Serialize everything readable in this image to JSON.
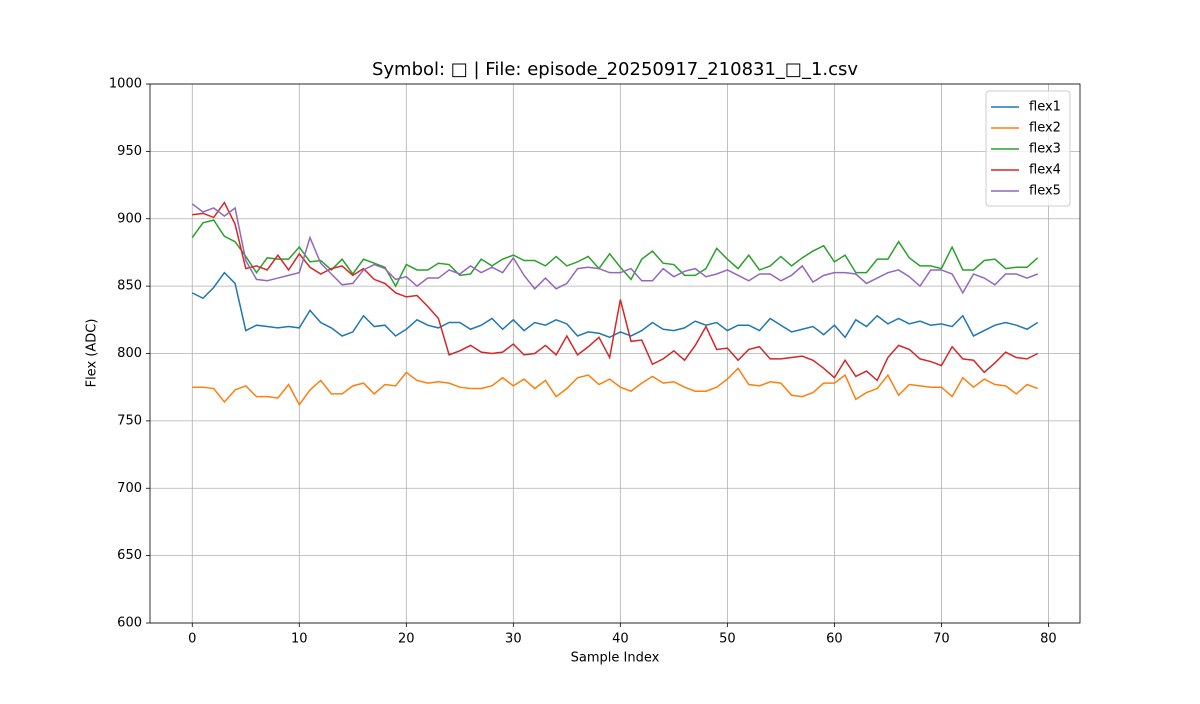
{
  "chart_data": {
    "type": "line",
    "title": "Symbol: □ | File: episode_20250917_210831_□_1.csv",
    "x_label": "Sample Index",
    "y_label": "Flex (ADC)",
    "x": [
      0,
      1,
      2,
      3,
      4,
      5,
      6,
      7,
      8,
      9,
      10,
      11,
      12,
      13,
      14,
      15,
      16,
      17,
      18,
      19,
      20,
      21,
      22,
      23,
      24,
      25,
      26,
      27,
      28,
      29,
      30,
      31,
      32,
      33,
      34,
      35,
      36,
      37,
      38,
      39,
      40,
      41,
      42,
      43,
      44,
      45,
      46,
      47,
      48,
      49,
      50,
      51,
      52,
      53,
      54,
      55,
      56,
      57,
      58,
      59,
      60,
      61,
      62,
      63,
      64,
      65,
      66,
      67,
      68,
      69,
      70,
      71,
      72,
      73,
      74,
      75,
      76,
      77,
      78,
      79
    ],
    "series": [
      {
        "name": "flex1",
        "color": "#1f77b4",
        "values": [
          845,
          841,
          849,
          860,
          852,
          817,
          821,
          820,
          819,
          820,
          819,
          832,
          823,
          819,
          813,
          816,
          828,
          820,
          821,
          813,
          818,
          825,
          821,
          819,
          823,
          823,
          818,
          821,
          826,
          818,
          825,
          817,
          823,
          821,
          825,
          822,
          813,
          816,
          815,
          812,
          816,
          813,
          817,
          823,
          818,
          817,
          819,
          824,
          821,
          823,
          817,
          821,
          821,
          817,
          826,
          821,
          816,
          818,
          820,
          814,
          821,
          812,
          825,
          820,
          828,
          822,
          826,
          822,
          824,
          821,
          822,
          820,
          828,
          813,
          817,
          821,
          823,
          821,
          818,
          823
        ]
      },
      {
        "name": "flex2",
        "color": "#ff7f0e",
        "values": [
          775,
          775,
          774,
          764,
          773,
          776,
          768,
          768,
          767,
          777,
          762,
          773,
          780,
          770,
          770,
          776,
          778,
          770,
          777,
          776,
          786,
          780,
          778,
          779,
          778,
          775,
          774,
          774,
          776,
          782,
          776,
          781,
          774,
          780,
          768,
          774,
          782,
          784,
          777,
          781,
          775,
          772,
          778,
          783,
          778,
          779,
          775,
          772,
          772,
          775,
          781,
          789,
          777,
          776,
          779,
          778,
          769,
          768,
          771,
          778,
          778,
          784,
          766,
          771,
          774,
          784,
          769,
          777,
          776,
          775,
          775,
          768,
          782,
          775,
          781,
          777,
          776,
          770,
          777,
          774
        ]
      },
      {
        "name": "flex3",
        "color": "#2ca02c",
        "values": [
          886,
          897,
          899,
          887,
          883,
          872,
          860,
          871,
          870,
          870,
          879,
          868,
          869,
          862,
          870,
          859,
          870,
          867,
          864,
          850,
          866,
          862,
          862,
          867,
          866,
          858,
          859,
          870,
          865,
          870,
          873,
          869,
          869,
          865,
          872,
          865,
          868,
          872,
          863,
          874,
          864,
          855,
          870,
          876,
          867,
          866,
          858,
          858,
          863,
          878,
          870,
          863,
          873,
          862,
          865,
          872,
          865,
          871,
          876,
          880,
          868,
          873,
          860,
          860,
          870,
          870,
          883,
          871,
          865,
          865,
          863,
          879,
          862,
          862,
          869,
          870,
          863,
          864,
          864,
          871
        ]
      },
      {
        "name": "flex4",
        "color": "#d62728",
        "values": [
          903,
          904,
          901,
          912,
          896,
          863,
          865,
          862,
          873,
          862,
          874,
          864,
          859,
          863,
          865,
          858,
          863,
          855,
          852,
          845,
          842,
          843,
          835,
          826,
          799,
          802,
          806,
          801,
          800,
          801,
          807,
          799,
          800,
          806,
          799,
          813,
          799,
          805,
          812,
          797,
          840,
          809,
          810,
          792,
          796,
          802,
          795,
          806,
          820,
          803,
          804,
          795,
          803,
          805,
          796,
          796,
          797,
          798,
          795,
          789,
          782,
          795,
          783,
          787,
          780,
          797,
          806,
          803,
          796,
          794,
          791,
          805,
          796,
          795,
          786,
          793,
          801,
          797,
          796,
          800
        ]
      },
      {
        "name": "flex5",
        "color": "#9467bd",
        "values": [
          911,
          905,
          908,
          902,
          908,
          869,
          855,
          854,
          856,
          858,
          860,
          886,
          867,
          859,
          851,
          852,
          862,
          866,
          863,
          855,
          857,
          850,
          856,
          856,
          862,
          859,
          865,
          860,
          864,
          860,
          871,
          858,
          848,
          856,
          848,
          852,
          863,
          864,
          863,
          860,
          860,
          863,
          854,
          854,
          863,
          857,
          861,
          863,
          857,
          859,
          862,
          858,
          854,
          859,
          859,
          854,
          858,
          865,
          853,
          858,
          860,
          860,
          859,
          852,
          856,
          860,
          862,
          857,
          850,
          862,
          862,
          859,
          845,
          859,
          856,
          851,
          859,
          859,
          856,
          859
        ]
      }
    ],
    "xlim": [
      -3.95,
      82.95
    ],
    "xticks": [
      0,
      10,
      20,
      30,
      40,
      50,
      60,
      70,
      80
    ],
    "ylim": [
      600,
      1000
    ],
    "yticks": [
      600,
      650,
      700,
      750,
      800,
      850,
      900,
      950,
      1000
    ],
    "grid": true,
    "legend": "upper right"
  }
}
